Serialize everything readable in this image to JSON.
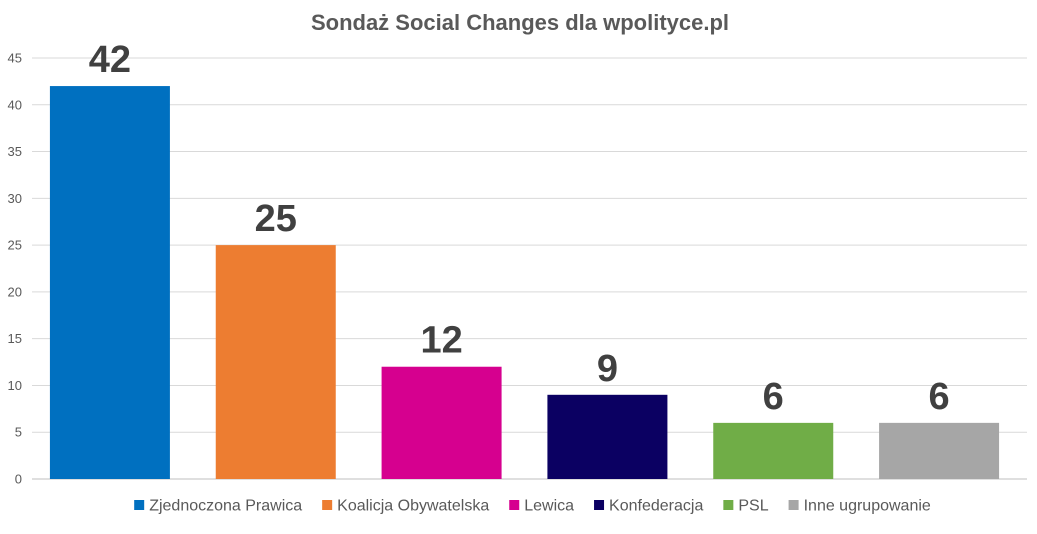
{
  "chart_data": {
    "type": "bar",
    "title": "Sondaż Social Changes dla wpolityce.pl",
    "xlabel": "",
    "ylabel": "",
    "ylim": [
      0,
      45
    ],
    "yticks": [
      0,
      5,
      10,
      15,
      20,
      25,
      30,
      35,
      40,
      45
    ],
    "grid": true,
    "legend_position": "bottom",
    "categories": [
      "Zjednoczona Prawica",
      "Koalicja Obywatelska",
      "Lewica",
      "Konfederacja",
      "PSL",
      "Inne ugrupowanie"
    ],
    "values": [
      42,
      25,
      12,
      9,
      6,
      6
    ],
    "data_labels": [
      "42",
      "25",
      "12",
      "9",
      "6",
      "6"
    ],
    "colors": [
      "#0070C0",
      "#ED7D31",
      "#D6008F",
      "#0B0062",
      "#70AD47",
      "#A6A6A6"
    ]
  }
}
